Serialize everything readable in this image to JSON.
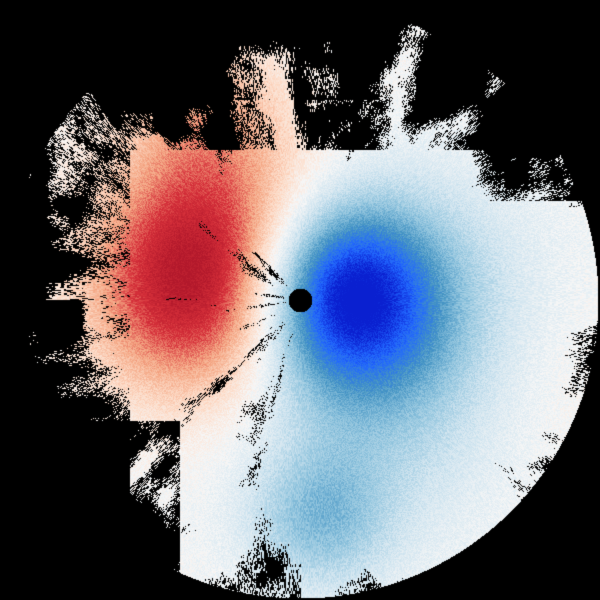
{
  "image": {
    "subject": "doppler-radial-velocity-radar-sweep",
    "background_color": "#000000",
    "colormap": [
      "#b2182b",
      "#d6303a",
      "#f4a582",
      "#fddbc7",
      "#f7f7f7",
      "#d1e5f0",
      "#92c5de",
      "#4393c3",
      "#2166ff",
      "#0a1fd0"
    ]
  }
}
